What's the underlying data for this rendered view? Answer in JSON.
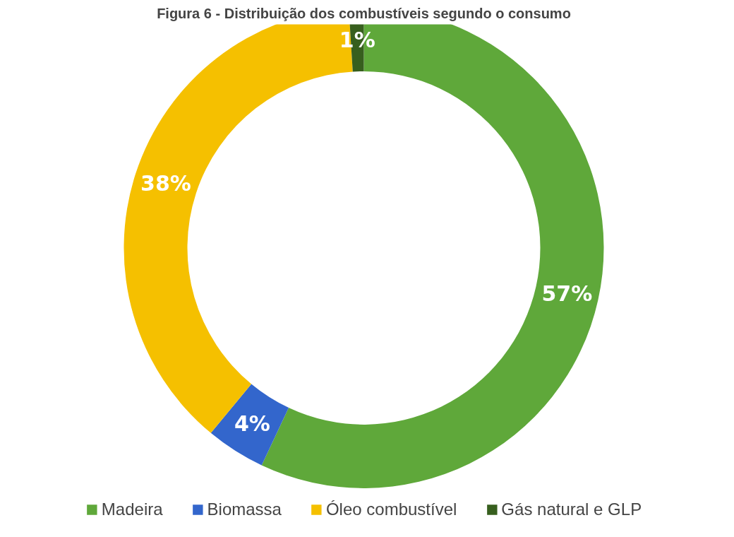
{
  "chart_data": {
    "type": "donut",
    "title": "Figura 6 - Distribuição dos combustíveis segundo o consumo",
    "categories": [
      "Madeira",
      "Biomassa",
      "Óleo combustível",
      "Gás natural e GLP"
    ],
    "values": [
      57,
      4,
      38,
      1
    ],
    "colors": [
      "#5fa83a",
      "#3366cc",
      "#f5c000",
      "#375f1e"
    ],
    "data_labels": true,
    "value_labels": [
      "57%",
      "4%",
      "38%",
      "1%"
    ],
    "legend": "bottom"
  }
}
